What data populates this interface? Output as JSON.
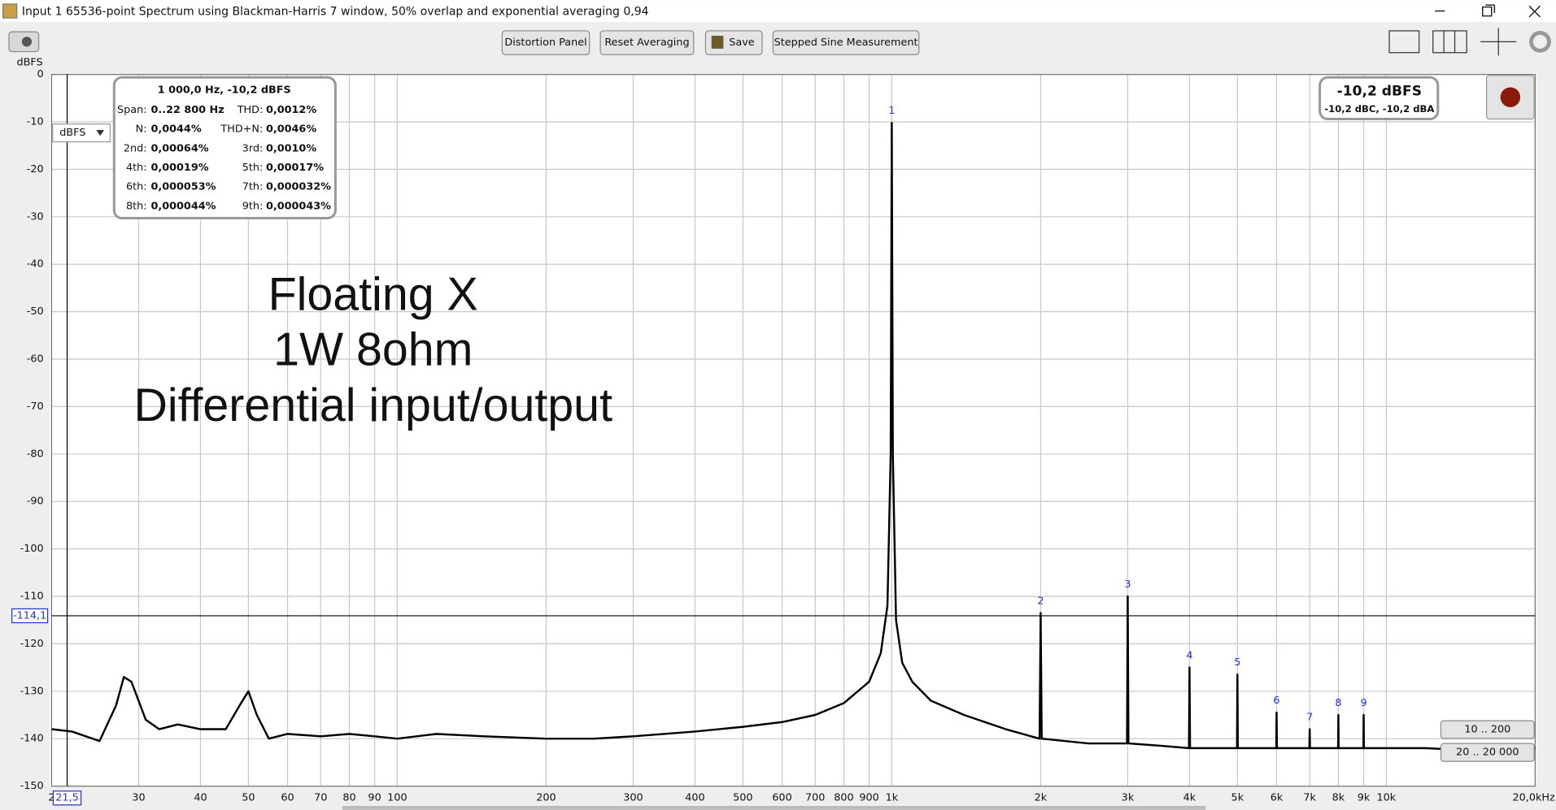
{
  "window": {
    "title": "Input 1 65536-point Spectrum using Blackman-Harris 7 window, 50% overlap and exponential averaging 0,94"
  },
  "toolbar": {
    "buttons": [
      "Distortion Panel",
      "Reset Averaging",
      "Save",
      "Stepped Sine Measurement"
    ]
  },
  "chart_data": {
    "type": "line",
    "ylabel": "dBFS",
    "xscale": "log",
    "grid": true,
    "xlim": [
      20,
      20000
    ],
    "ylim": [
      -150,
      0
    ],
    "yticks": [
      0,
      -10,
      -20,
      -30,
      -40,
      -50,
      -60,
      -70,
      -80,
      -90,
      -100,
      -110,
      -120,
      -130,
      -140,
      -150
    ],
    "xticks": [
      {
        "value": 20,
        "label": "2"
      },
      30,
      40,
      50,
      60,
      70,
      80,
      90,
      100,
      200,
      300,
      400,
      500,
      600,
      700,
      800,
      900,
      {
        "value": 1000,
        "label": "1k"
      },
      {
        "value": 2000,
        "label": "2k"
      },
      {
        "value": 3000,
        "label": "3k"
      },
      {
        "value": 4000,
        "label": "4k"
      },
      {
        "value": 5000,
        "label": "5k"
      },
      {
        "value": 6000,
        "label": "6k"
      },
      {
        "value": 7000,
        "label": "7k"
      },
      {
        "value": 8000,
        "label": "8k"
      },
      {
        "value": 9000,
        "label": "9k"
      },
      {
        "value": 10000,
        "label": "10k"
      },
      {
        "value": 20000,
        "label": "20,0kHz"
      }
    ],
    "x": [
      20,
      22,
      25,
      27,
      28,
      29,
      31,
      33,
      36,
      40,
      45,
      48,
      50,
      52,
      55,
      60,
      70,
      80,
      90,
      100,
      120,
      150,
      200,
      250,
      300,
      400,
      500,
      600,
      700,
      800,
      900,
      950,
      980,
      995,
      1000,
      1005,
      1020,
      1050,
      1100,
      1200,
      1400,
      1700,
      1990,
      2000,
      2010,
      2500,
      2990,
      3000,
      3010,
      3500,
      3990,
      4000,
      4010,
      4500,
      4990,
      5000,
      5010,
      5990,
      6000,
      6010,
      6990,
      7000,
      7010,
      7990,
      8000,
      8010,
      8990,
      9000,
      9010,
      12000,
      15000,
      20000
    ],
    "series": [
      {
        "name": "Input 1",
        "color": "#000000",
        "values": [
          -138,
          -138.5,
          -140.5,
          -133,
          -127,
          -128,
          -136,
          -138,
          -137,
          -138,
          -138,
          -133,
          -130,
          -135,
          -140,
          -139,
          -139.5,
          -139,
          -139.5,
          -140,
          -139,
          -139.5,
          -140,
          -140,
          -139.5,
          -138.5,
          -137.5,
          -136.5,
          -135,
          -132.5,
          -128,
          -122,
          -112,
          -80,
          -10.2,
          -80,
          -115,
          -124,
          -128,
          -132,
          -135,
          -138,
          -140,
          -113.5,
          -140,
          -141,
          -141,
          -110,
          -141,
          -141.5,
          -142,
          -125,
          -142,
          -142,
          -142,
          -126.5,
          -142,
          -142,
          -134.5,
          -142,
          -142,
          -138,
          -142,
          -142,
          -135,
          -142,
          -142,
          -135,
          -142,
          -142,
          -142.5,
          -142
        ]
      }
    ],
    "harmonic_labels": [
      {
        "label": "1",
        "x": 1000,
        "y": -10.2
      },
      {
        "label": "2",
        "x": 2000,
        "y": -113.5
      },
      {
        "label": "3",
        "x": 3000,
        "y": -110
      },
      {
        "label": "4",
        "x": 4000,
        "y": -125
      },
      {
        "label": "5",
        "x": 5000,
        "y": -126.5
      },
      {
        "label": "6",
        "x": 6000,
        "y": -134.5
      },
      {
        "label": "7",
        "x": 7000,
        "y": -138
      },
      {
        "label": "8",
        "x": 8000,
        "y": -135
      },
      {
        "label": "9",
        "x": 9000,
        "y": -135
      }
    ],
    "cursor": {
      "x": {
        "value": 21.5,
        "label": "21,5"
      },
      "y": {
        "value": -114.1,
        "label": "-114,1"
      }
    },
    "annotation": [
      "Floating X",
      "1W 8ohm",
      "Differential input/output"
    ]
  },
  "distortion_panel": {
    "header": "1 000,0 Hz, -10,2 dBFS",
    "rows": [
      [
        "Span:",
        "0..22 800 Hz",
        "THD:",
        "0,0012%"
      ],
      [
        "N:",
        "0,0044%",
        "THD+N:",
        "0,0046%"
      ],
      [
        "2nd:",
        "0,00064%",
        "3rd:",
        "0,0010%"
      ],
      [
        "4th:",
        "0,00019%",
        "5th:",
        "0,00017%"
      ],
      [
        "6th:",
        "0,000053%",
        "7th:",
        "0,000032%"
      ],
      [
        "8th:",
        "0,000044%",
        "9th:",
        "0,000043%"
      ]
    ]
  },
  "level_box": {
    "main": "-10,2 dBFS",
    "sub": "-10,2 dBC, -10,2 dBA"
  },
  "unit_select": "dBFS",
  "range_buttons": [
    "10 .. 200",
    "20 .. 20 000"
  ]
}
